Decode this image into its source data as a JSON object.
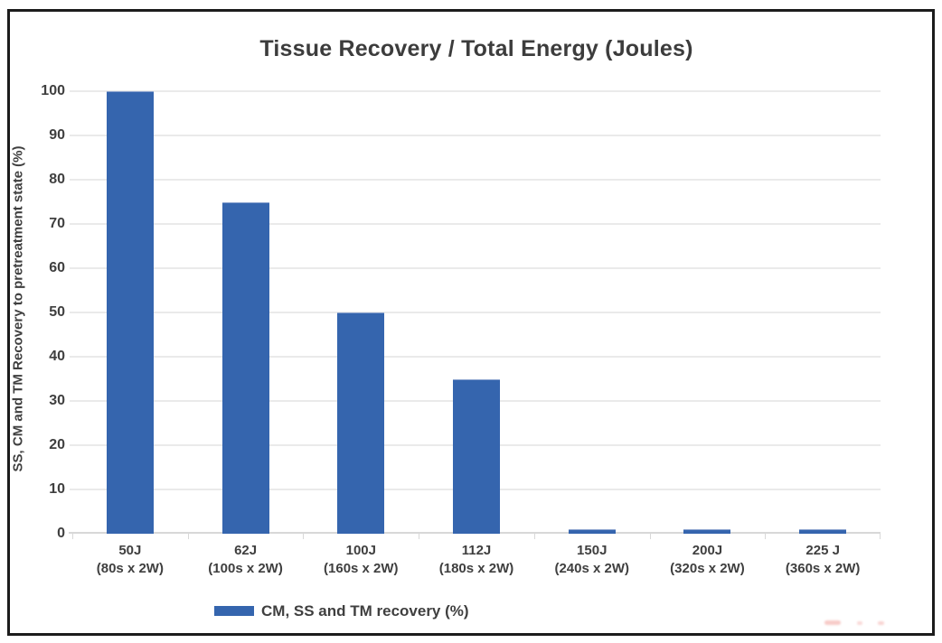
{
  "chart_data": {
    "type": "bar",
    "title": "Tissue Recovery / Total Energy (Joules)",
    "ylabel": "SS, CM and TM Recovery to pretreatment state (%)",
    "xlabel": "",
    "categories": [
      {
        "label": "50J",
        "sublabel": "(80s x 2W)"
      },
      {
        "label": "62J",
        "sublabel": "(100s x 2W)"
      },
      {
        "label": "100J",
        "sublabel": "(160s x 2W)"
      },
      {
        "label": "112J",
        "sublabel": "(180s x 2W)"
      },
      {
        "label": "150J",
        "sublabel": "(240s x 2W)"
      },
      {
        "label": "200J",
        "sublabel": "(320s x 2W)"
      },
      {
        "label": "225 J",
        "sublabel": "(360s x 2W)"
      }
    ],
    "values": [
      100,
      75,
      50,
      35,
      1,
      1,
      1
    ],
    "ylim": [
      0,
      100
    ],
    "yticks": [
      0,
      10,
      20,
      30,
      40,
      50,
      60,
      70,
      80,
      90,
      100
    ],
    "grid": true,
    "bar_color": "#3565ae",
    "legend": {
      "position": "bottom-left",
      "entries": [
        {
          "label": "CM, SS and TM recovery (%)",
          "color": "#3565ae"
        }
      ]
    }
  },
  "colors": {
    "bar": "#3565ae",
    "gridline": "#eaeaea",
    "baseline": "#d8d8d8",
    "text": "#3f3f3f",
    "frame_border": "#1c1c1c",
    "watermark_artifact": "#f3b7b2"
  }
}
